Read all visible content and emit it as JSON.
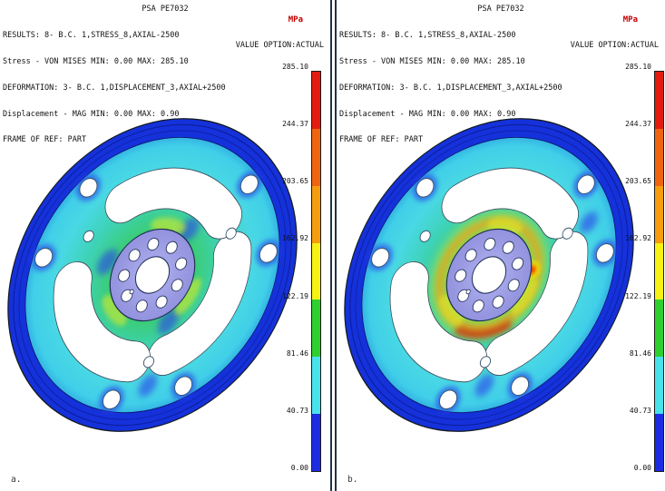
{
  "header": {
    "title": "PSA PE7032",
    "unit": "MPa",
    "results": "RESULTS: 8- B.C. 1,STRESS_8,AXIAL-2500",
    "stress": "Stress - VON MISES MIN: 0.00 MAX: 285.10",
    "deformation": "DEFORMATION: 3- B.C. 1,DISPLACEMENT_3,AXIAL+2500",
    "displacement": "Displacement - MAG MIN: 0.00 MAX: 0.90",
    "value_option": "VALUE OPTION:ACTUAL",
    "frame": "FRAME OF REF: PART"
  },
  "panels": [
    {
      "label": "a."
    },
    {
      "label": "b."
    }
  ],
  "colorbar": {
    "unit": "MPa",
    "labels": [
      "285.10",
      "244.37",
      "203.65",
      "162.92",
      "122.19",
      "81.46",
      "40.73",
      "0.00"
    ],
    "band_colors": [
      "#e31b10",
      "#ef6410",
      "#f59d0e",
      "#f7f214",
      "#2ed02e",
      "#48e2ec",
      "#1c2ce2"
    ]
  },
  "colors": {
    "unit_text": "#c40000",
    "panel_divider": "#203246",
    "rim_blue": "#1531da",
    "field_cyan": "#49d8e4",
    "field_green": "#3dc84b",
    "hub_lavender": "#9c9ce8",
    "hotspot_red": "#dd1500",
    "background": "#ffffff"
  },
  "chart_data": {
    "type": "heatmap",
    "title": "PSA PE7032",
    "subtitle_lines": [
      "RESULTS: 8- B.C. 1,STRESS_8,AXIAL-2500",
      "Stress - VON MISES MIN: 0.00 MAX: 285.10",
      "DEFORMATION: 3- B.C. 1,DISPLACEMENT_3,AXIAL+2500",
      "Displacement - MAG MIN: 0.00 MAX: 0.90",
      "FRAME OF REF: PART"
    ],
    "unit": "MPa",
    "value_option": "ACTUAL",
    "legend_position": "right",
    "scale_values": [
      285.1,
      244.37,
      203.65,
      162.92,
      122.19,
      81.46,
      40.73,
      0.0
    ],
    "scale_colors": [
      "#e31b10",
      "#ef6410",
      "#f59d0e",
      "#f7f214",
      "#2ed02e",
      "#48e2ec",
      "#1c2ce2"
    ],
    "stress_min": 0.0,
    "stress_max": 285.1,
    "displacement_min": 0.0,
    "displacement_max": 0.9,
    "panels": [
      {
        "label": "a."
      },
      {
        "label": "b."
      }
    ]
  }
}
